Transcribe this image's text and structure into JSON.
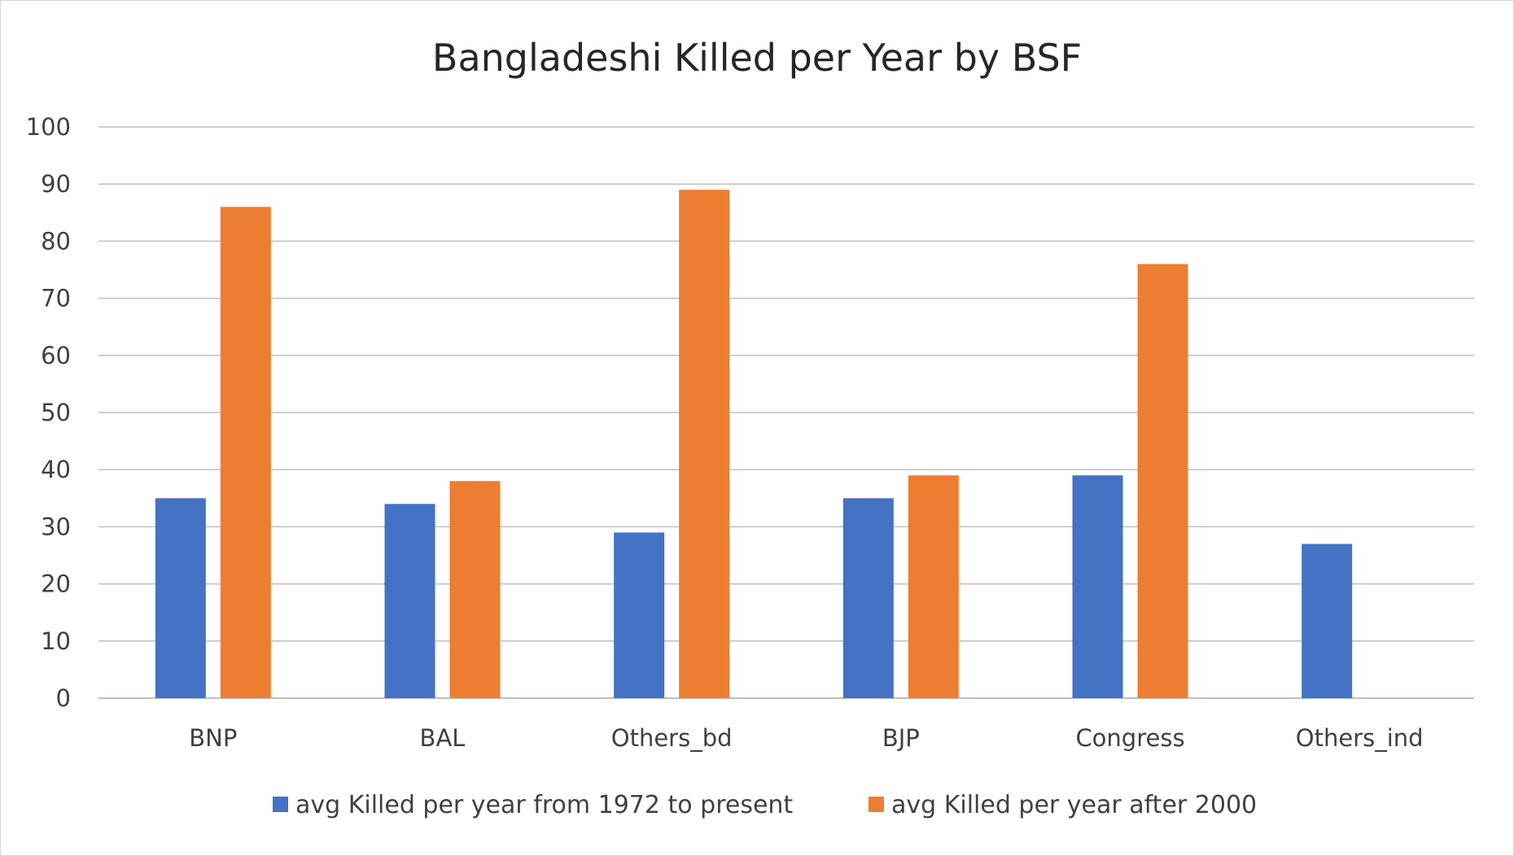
{
  "chart_data": {
    "type": "bar",
    "title": "Bangladeshi Killed per Year by BSF",
    "xlabel": "",
    "ylabel": "",
    "categories": [
      "BNP",
      "BAL",
      "Others_bd",
      "BJP",
      "Congress",
      "Others_ind"
    ],
    "series": [
      {
        "name": "avg Killed per year from 1972 to present",
        "color": "#4472C4",
        "values": [
          35,
          34,
          29,
          35,
          39,
          27
        ]
      },
      {
        "name": "avg Killed per year after 2000",
        "color": "#ED7D31",
        "values": [
          86,
          38,
          89,
          39,
          76,
          null
        ]
      }
    ],
    "ylim": [
      0,
      100
    ],
    "yticks": [
      "0",
      "10",
      "20",
      "30",
      "40",
      "50",
      "60",
      "70",
      "80",
      "90",
      "100"
    ],
    "grid": true,
    "legend_position": "bottom"
  }
}
